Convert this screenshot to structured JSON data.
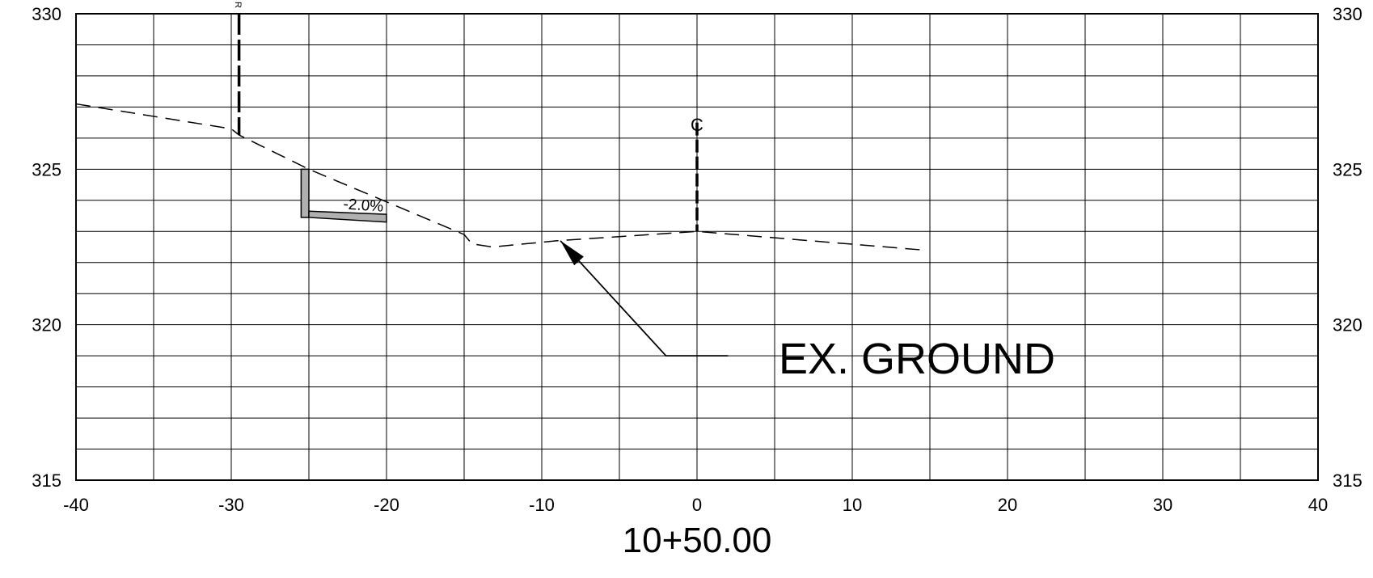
{
  "station": "10+50.00",
  "left_axis_labels": [
    "330",
    "325",
    "320",
    "315"
  ],
  "right_axis_labels": [
    "330",
    "325",
    "320",
    "315"
  ],
  "x_tick_labels": [
    "-40",
    "-30",
    "-20",
    "-10",
    "0",
    "10",
    "20",
    "30",
    "40"
  ],
  "annotations": {
    "ground_callout": "EX. GROUND",
    "slope_label": "-2.0%",
    "centerline_symbol": "C",
    "row_marker": "R"
  },
  "chart_data": {
    "type": "line",
    "title": "10+50.00",
    "xlabel": "",
    "ylabel": "",
    "xlim": [
      -40,
      40
    ],
    "ylim": [
      315,
      330
    ],
    "x_grid_step": 5,
    "y_grid_step": 1,
    "grid": true,
    "series": [
      {
        "style": "dashed",
        "points": [
          [
            -40,
            327.1
          ],
          [
            -30,
            326.3
          ],
          [
            -29.5,
            326.1
          ],
          [
            -25,
            325
          ],
          [
            -15,
            322.9
          ],
          [
            -14.5,
            322.6
          ],
          [
            -13.2,
            322.5
          ],
          [
            -9,
            322.7
          ],
          [
            0,
            323.0
          ],
          [
            14.6,
            322.4
          ]
        ]
      }
    ],
    "vertical_markers": [
      {
        "x": -29.5,
        "label": "R",
        "y_top": 330,
        "y_bottom": 326.1
      },
      {
        "x": 0,
        "label": "C",
        "y_top": 326.5,
        "y_bottom": 323.0
      }
    ],
    "curb": {
      "vertical": {
        "x": [
          -25.5,
          -25
        ],
        "y": [
          323.45,
          325.0
        ]
      },
      "gutter": {
        "x": [
          -25,
          -20
        ],
        "y_top": [
          323.65,
          323.55
        ],
        "y_bottom": [
          323.45,
          323.3
        ]
      },
      "slope_label": "-2.0%"
    },
    "callout": {
      "text": "EX. GROUND",
      "tip": [
        -8.8,
        322.7
      ],
      "elbow": [
        -2,
        319.0
      ],
      "end": [
        2,
        319.0
      ]
    }
  }
}
